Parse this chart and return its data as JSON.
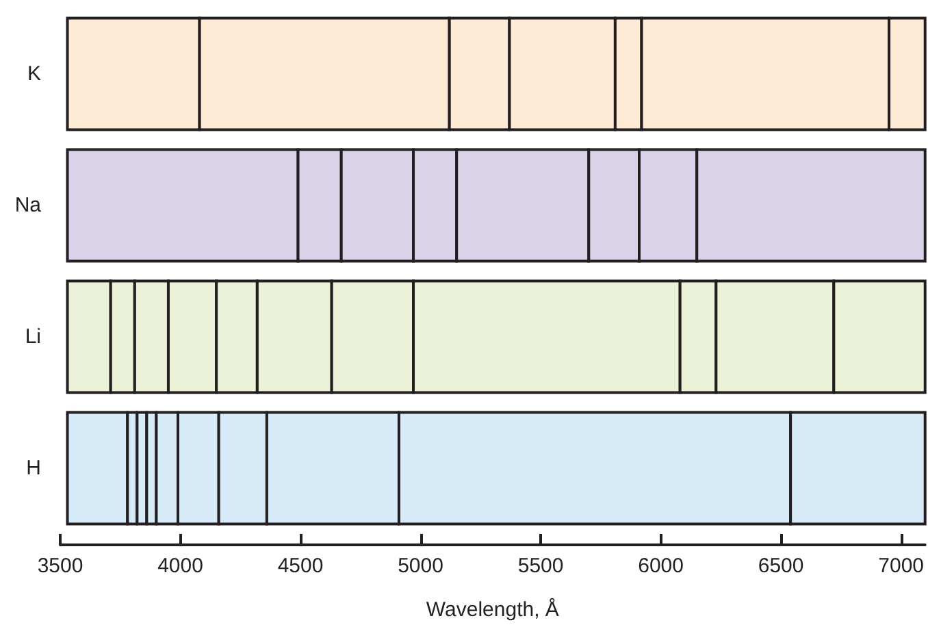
{
  "chart_data": {
    "type": "bar",
    "orientation": "horizontal",
    "categories": [
      "K",
      "Na",
      "Li",
      "H"
    ],
    "xlim": [
      3500,
      7100
    ],
    "xticks": [
      3500,
      4000,
      4500,
      5000,
      5500,
      6000,
      6500,
      7000
    ],
    "xlabel": "Wavelength, Å",
    "series": [
      {
        "colors": [
          "#fdebd6",
          "#d9d3ea",
          "#ecf2d8",
          "#d7eaf8"
        ],
        "base": [
          3530,
          3530,
          3530,
          3530
        ],
        "values": [
          550,
          960,
          180,
          250
        ]
      },
      {
        "colors": [
          "#fdebd6",
          "#d9d3ea",
          "#ecf2d8",
          "#d7eaf8"
        ],
        "base": [
          4080,
          4490,
          3710,
          3780
        ],
        "values": [
          1040,
          180,
          100,
          40
        ]
      },
      {
        "colors": [
          "#fdebd6",
          "#d9d3ea",
          "#ecf2d8",
          "#d7eaf8"
        ],
        "base": [
          5120,
          4670,
          3810,
          3820
        ],
        "values": [
          250,
          300,
          140,
          40
        ]
      },
      {
        "colors": [
          "#fdebd6",
          "#d9d3ea",
          "#ecf2d8",
          "#d7eaf8"
        ],
        "base": [
          5370,
          4970,
          3950,
          3860
        ],
        "values": [
          440,
          180,
          200,
          40
        ]
      },
      {
        "colors": [
          "#fdebd6",
          "#d9d3ea",
          "#ecf2d8",
          "#d7eaf8"
        ],
        "base": [
          5810,
          5150,
          4150,
          3900
        ],
        "values": [
          110,
          550,
          170,
          90
        ]
      },
      {
        "colors": [
          "#fdebd6",
          "#d9d3ea",
          "#ecf2d8",
          "#d7eaf8"
        ],
        "base": [
          5920,
          5700,
          4320,
          3990
        ],
        "values": [
          1030,
          210,
          310,
          170
        ]
      },
      {
        "colors": [
          "#fdebd6",
          "#d9d3ea",
          "#ecf2d8",
          "#d7eaf8"
        ],
        "base": [
          6950,
          5910,
          4630,
          4160
        ],
        "values": [
          150,
          240,
          340,
          200
        ]
      },
      {
        "colors": [
          null,
          "#d9d3ea",
          "#ecf2d8",
          "#d7eaf8"
        ],
        "base": [
          null,
          6150,
          4970,
          4360
        ],
        "values": [
          null,
          950,
          1110,
          550
        ]
      },
      {
        "colors": [
          null,
          null,
          "#ecf2d8",
          "#d7eaf8"
        ],
        "base": [
          null,
          null,
          6080,
          4910
        ],
        "values": [
          null,
          null,
          150,
          1630
        ]
      },
      {
        "colors": [
          null,
          null,
          "#ecf2d8",
          "#d7eaf8"
        ],
        "base": [
          null,
          null,
          6230,
          6540
        ],
        "values": [
          null,
          null,
          490,
          560
        ]
      },
      {
        "colors": [
          null,
          null,
          "#ecf2d8",
          null
        ],
        "base": [
          null,
          null,
          6720,
          null
        ],
        "values": [
          null,
          null,
          380,
          null
        ]
      }
    ]
  }
}
